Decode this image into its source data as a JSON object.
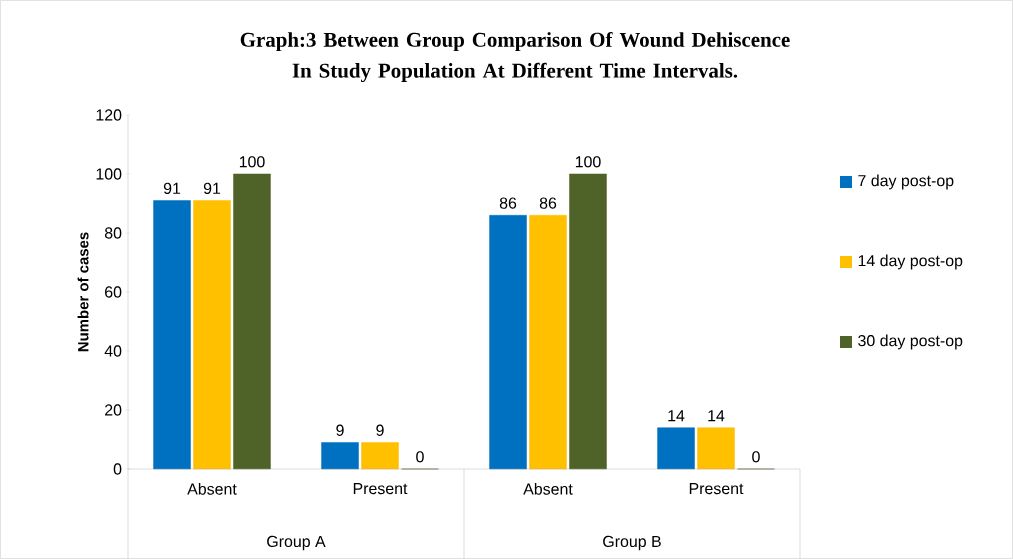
{
  "chart_data": {
    "type": "bar",
    "title": "Graph:3   Between Group  Comparison  Of Wound  Dehiscence In Study Population  At Different Time  Intervals.",
    "ylabel": "Number of cases",
    "categories": [
      "Absent",
      "Present",
      "Absent",
      "Present"
    ],
    "annotations": [
      "Group A",
      "Group B"
    ],
    "series": [
      {
        "name": "7 day post-op",
        "color": "#0070c0",
        "values": [
          91,
          9,
          86,
          14
        ]
      },
      {
        "name": "14 day post-op",
        "color": "#ffc000",
        "values": [
          91,
          9,
          86,
          14
        ]
      },
      {
        "name": "30 day post-op",
        "color": "#4f6228",
        "values": [
          100,
          0,
          100,
          0
        ]
      }
    ],
    "ylim": [
      0,
      120
    ],
    "yticks": [
      0,
      20,
      40,
      60,
      80,
      100,
      120
    ],
    "data_labels": true,
    "legend": "right",
    "grid": false
  }
}
